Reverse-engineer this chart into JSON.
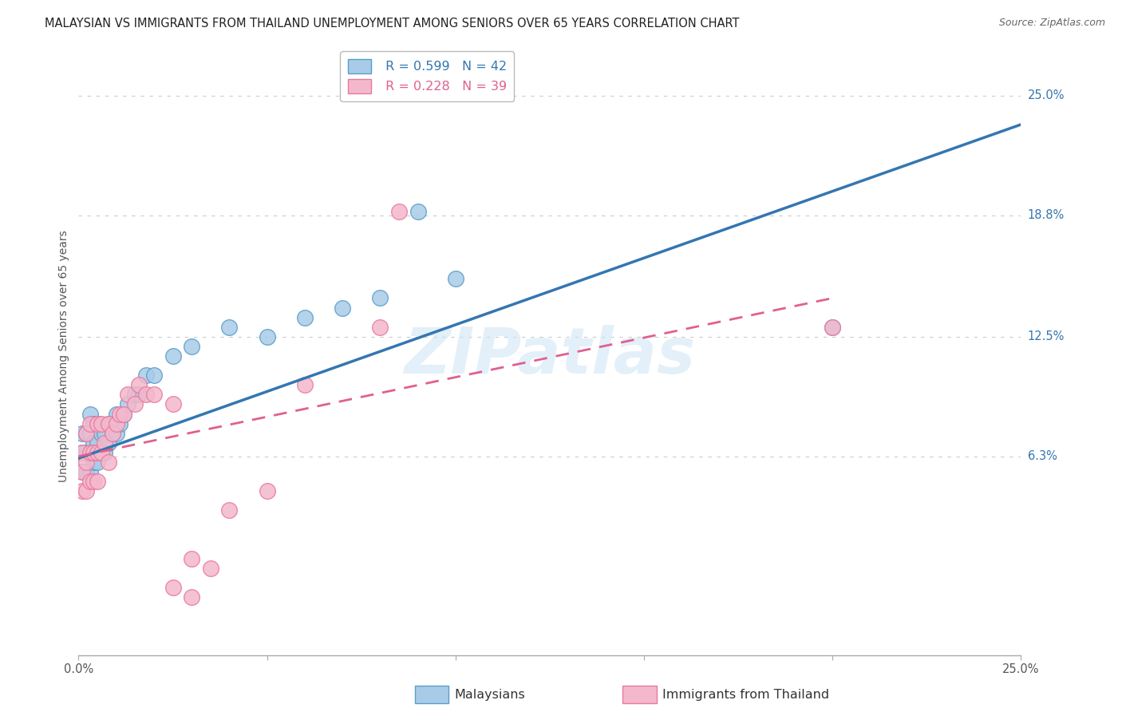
{
  "title": "MALAYSIAN VS IMMIGRANTS FROM THAILAND UNEMPLOYMENT AMONG SENIORS OVER 65 YEARS CORRELATION CHART",
  "source": "Source: ZipAtlas.com",
  "ylabel": "Unemployment Among Seniors over 65 years",
  "xlim": [
    0.0,
    0.25
  ],
  "ylim": [
    -0.04,
    0.27
  ],
  "right_ytick_labels": [
    "25.0%",
    "18.8%",
    "12.5%",
    "6.3%"
  ],
  "right_ytick_values": [
    0.25,
    0.188,
    0.125,
    0.063
  ],
  "blue_R": 0.599,
  "blue_N": 42,
  "pink_R": 0.228,
  "pink_N": 39,
  "blue_label": "Malaysians",
  "pink_label": "Immigrants from Thailand",
  "blue_color": "#a8cce8",
  "pink_color": "#f4b8cc",
  "blue_edge_color": "#5a9ec9",
  "pink_edge_color": "#e87aa0",
  "blue_line_color": "#3476b0",
  "pink_line_color": "#e06090",
  "watermark": "ZIPatlas",
  "blue_line_x0": 0.0,
  "blue_line_y0": 0.062,
  "blue_line_x1": 0.25,
  "blue_line_y1": 0.235,
  "pink_line_x0": 0.0,
  "pink_line_y0": 0.063,
  "pink_line_x1": 0.2,
  "pink_line_y1": 0.145,
  "blue_x": [
    0.001,
    0.001,
    0.001,
    0.002,
    0.002,
    0.002,
    0.003,
    0.003,
    0.003,
    0.003,
    0.004,
    0.004,
    0.004,
    0.005,
    0.005,
    0.005,
    0.006,
    0.006,
    0.007,
    0.007,
    0.008,
    0.008,
    0.009,
    0.01,
    0.01,
    0.011,
    0.012,
    0.013,
    0.015,
    0.016,
    0.018,
    0.02,
    0.025,
    0.03,
    0.04,
    0.05,
    0.06,
    0.07,
    0.08,
    0.1,
    0.09,
    0.2
  ],
  "blue_y": [
    0.055,
    0.065,
    0.075,
    0.055,
    0.065,
    0.075,
    0.055,
    0.065,
    0.075,
    0.085,
    0.06,
    0.07,
    0.08,
    0.06,
    0.07,
    0.08,
    0.065,
    0.075,
    0.065,
    0.075,
    0.07,
    0.08,
    0.075,
    0.075,
    0.085,
    0.08,
    0.085,
    0.09,
    0.095,
    0.095,
    0.105,
    0.105,
    0.115,
    0.12,
    0.13,
    0.125,
    0.135,
    0.14,
    0.145,
    0.155,
    0.19,
    0.13
  ],
  "pink_x": [
    0.001,
    0.001,
    0.001,
    0.002,
    0.002,
    0.002,
    0.003,
    0.003,
    0.003,
    0.004,
    0.004,
    0.005,
    0.005,
    0.005,
    0.006,
    0.006,
    0.007,
    0.008,
    0.008,
    0.009,
    0.01,
    0.011,
    0.012,
    0.013,
    0.015,
    0.016,
    0.018,
    0.02,
    0.025,
    0.025,
    0.03,
    0.03,
    0.035,
    0.04,
    0.05,
    0.06,
    0.08,
    0.085,
    0.2
  ],
  "pink_y": [
    0.045,
    0.055,
    0.065,
    0.045,
    0.06,
    0.075,
    0.05,
    0.065,
    0.08,
    0.05,
    0.065,
    0.05,
    0.065,
    0.08,
    0.065,
    0.08,
    0.07,
    0.06,
    0.08,
    0.075,
    0.08,
    0.085,
    0.085,
    0.095,
    0.09,
    0.1,
    0.095,
    0.095,
    0.09,
    -0.005,
    0.01,
    -0.01,
    0.005,
    0.035,
    0.045,
    0.1,
    0.13,
    0.19,
    0.13
  ],
  "background_color": "#ffffff",
  "grid_color": "#cccccc",
  "grid_style": "-.",
  "title_fontsize": 10.5,
  "axis_label_fontsize": 10,
  "tick_fontsize": 10.5,
  "legend_fontsize": 11.5
}
